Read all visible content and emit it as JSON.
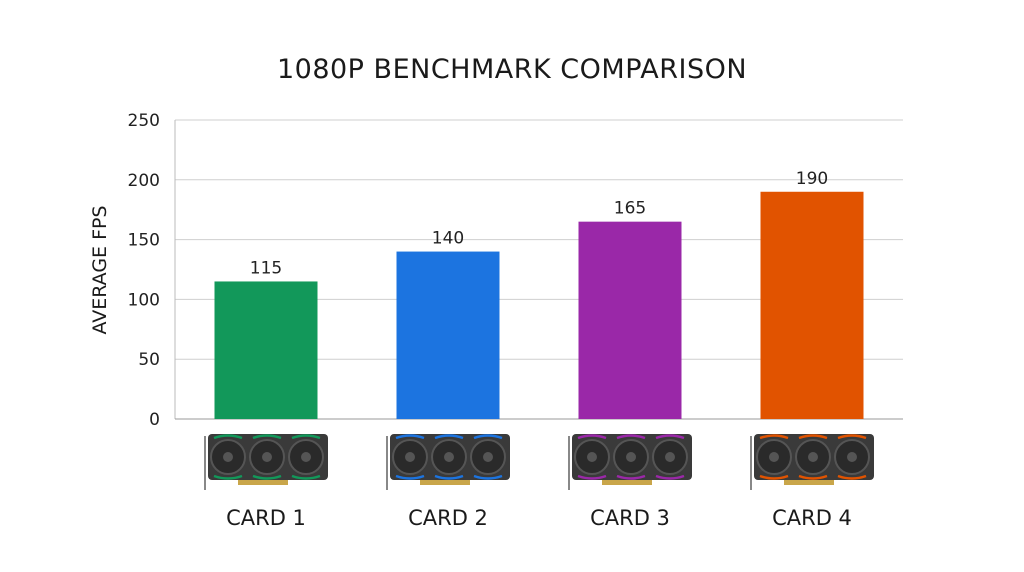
{
  "chart_data": {
    "type": "bar",
    "title": "1080P BENCHMARK COMPARISON",
    "xlabel": "",
    "ylabel": "AVERAGE FPS",
    "categories": [
      "CARD 1",
      "CARD 2",
      "CARD 3",
      "CARD 4"
    ],
    "values": [
      115,
      140,
      165,
      190
    ],
    "data_labels": [
      "115",
      "140",
      "165",
      "190"
    ],
    "ylim": [
      0,
      250
    ],
    "yticks": [
      0,
      50,
      100,
      150,
      200,
      250
    ],
    "grid": true,
    "legend": "none",
    "colors": [
      "#12985a",
      "#1c74e0",
      "#9a28a8",
      "#e15300"
    ],
    "category_icons": [
      "graphics-card-icon",
      "graphics-card-icon",
      "graphics-card-icon",
      "graphics-card-icon"
    ]
  }
}
